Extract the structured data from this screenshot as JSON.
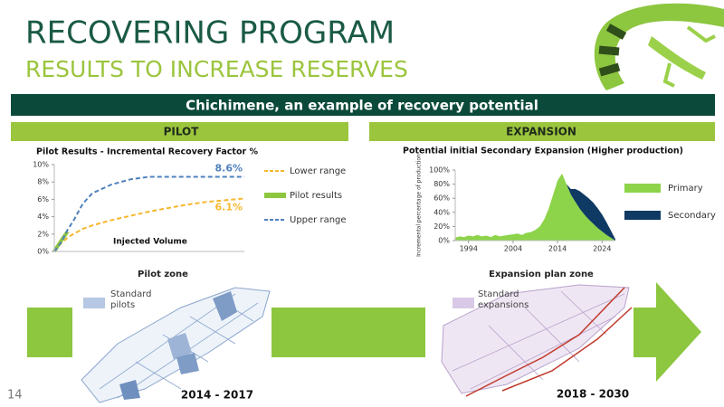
{
  "title": "RECOVERING PROGRAM",
  "subtitle": "RESULTS TO INCREASE RESERVES",
  "banner": "Chichimene, an example of recovery potential",
  "pilot": {
    "heading": "PILOT",
    "zone_title": "Pilot zone",
    "legend": "Standard pilots",
    "period": "2014 - 2017"
  },
  "expansion": {
    "heading": "EXPANSION",
    "zone_title": "Expansion plan zone",
    "legend": "Standard expansions",
    "period": "2018 - 2030"
  },
  "page_number": "14",
  "chart_data": [
    {
      "type": "line",
      "title": "Pilot Results - Incremental Recovery Factor %",
      "x_label": "Injected Volume",
      "x": [
        0,
        0.35,
        0.7,
        1,
        1.5,
        2,
        3,
        4,
        5,
        6,
        7,
        8,
        9,
        10
      ],
      "xlim": [
        0,
        10
      ],
      "ylim": [
        0,
        10
      ],
      "yticks": [
        {
          "value": 0,
          "label": "0%"
        },
        {
          "value": 2,
          "label": "2%"
        },
        {
          "value": 4,
          "label": "4%"
        },
        {
          "value": 6,
          "label": "6%"
        },
        {
          "value": 8,
          "label": "8%"
        },
        {
          "value": 10,
          "label": "10%"
        }
      ],
      "series": [
        {
          "name": "Lower range",
          "color": "#f5b82e",
          "style": "dashed",
          "values": [
            0,
            0.9,
            1.6,
            2.0,
            2.6,
            3.0,
            3.6,
            4.1,
            4.6,
            5.0,
            5.4,
            5.7,
            5.9,
            6.1
          ],
          "value_labels": [
            null,
            null,
            null,
            null,
            null,
            null,
            null,
            null,
            null,
            null,
            null,
            null,
            null,
            "6.1%"
          ]
        },
        {
          "name": "Pilot results",
          "color": "#8dc63f",
          "style": "solid",
          "values": [
            0,
            1.2,
            2.3,
            null,
            null,
            null,
            null,
            null,
            null,
            null,
            null,
            null,
            null,
            null
          ]
        },
        {
          "name": "Upper range",
          "color": "#4f81bd",
          "style": "dashed",
          "values": [
            0,
            1.0,
            2.5,
            3.5,
            5.5,
            6.7,
            7.7,
            8.3,
            8.6,
            8.6,
            8.6,
            8.6,
            8.6,
            8.6
          ],
          "value_labels": [
            null,
            null,
            null,
            null,
            null,
            null,
            null,
            null,
            null,
            null,
            null,
            null,
            null,
            "8.6%"
          ]
        }
      ]
    },
    {
      "type": "area",
      "stacked": true,
      "title": "Potential initial Secondary Expansion (Higher production)",
      "y_label": "Incremental percentage of production",
      "x": [
        1991,
        1992,
        1993,
        1994,
        1995,
        1996,
        1997,
        1998,
        1999,
        2000,
        2001,
        2002,
        2003,
        2004,
        2005,
        2006,
        2007,
        2008,
        2009,
        2010,
        2011,
        2012,
        2013,
        2014,
        2015,
        2016,
        2017,
        2018,
        2019,
        2020,
        2021,
        2022,
        2023,
        2024,
        2025,
        2026,
        2027
      ],
      "xlim": [
        1991,
        2027
      ],
      "xticks": [
        1994,
        2004,
        2014,
        2024
      ],
      "ylim": [
        0,
        100
      ],
      "yticks": [
        {
          "value": 0,
          "label": "0%"
        },
        {
          "value": 20,
          "label": "20%"
        },
        {
          "value": 40,
          "label": "40%"
        },
        {
          "value": 60,
          "label": "60%"
        },
        {
          "value": 80,
          "label": "80%"
        },
        {
          "value": 100,
          "label": "100%"
        }
      ],
      "series": [
        {
          "name": "Primary",
          "color": "#8dd44a",
          "values": [
            4,
            6,
            5,
            7,
            6,
            8,
            6,
            7,
            5,
            8,
            6,
            7,
            8,
            9,
            10,
            8,
            11,
            12,
            15,
            20,
            30,
            45,
            65,
            85,
            95,
            80,
            65,
            55,
            45,
            37,
            30,
            24,
            18,
            13,
            8,
            4,
            0
          ]
        },
        {
          "name": "Secondary",
          "color": "#0f3a63",
          "values": [
            0,
            0,
            0,
            0,
            0,
            0,
            0,
            0,
            0,
            0,
            0,
            0,
            0,
            0,
            0,
            0,
            0,
            0,
            0,
            0,
            0,
            0,
            0,
            0,
            0,
            0,
            8,
            18,
            25,
            28,
            30,
            30,
            28,
            24,
            18,
            10,
            2
          ]
        }
      ]
    }
  ]
}
